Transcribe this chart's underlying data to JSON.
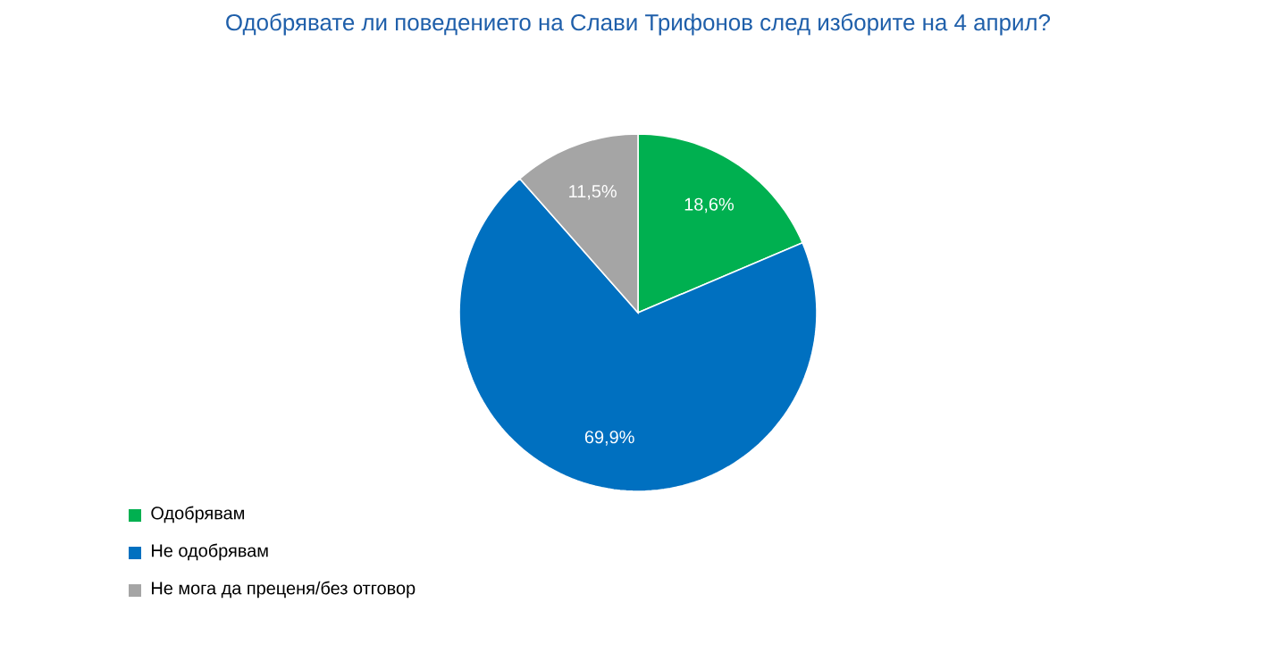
{
  "chart_data": {
    "type": "pie",
    "title": "Одобрявате ли поведението на Слави Трифонов след изборите на 4 април?",
    "categories": [
      "Одобрявам",
      "Не одобрявам",
      "Не мога да преценя/без отговор"
    ],
    "values": [
      18.6,
      69.9,
      11.5
    ],
    "value_labels": [
      "18,6%",
      "69,9%",
      "11,5%"
    ],
    "colors": [
      "#00b050",
      "#0070c0",
      "#a5a5a5"
    ],
    "legend": "bottom left"
  }
}
